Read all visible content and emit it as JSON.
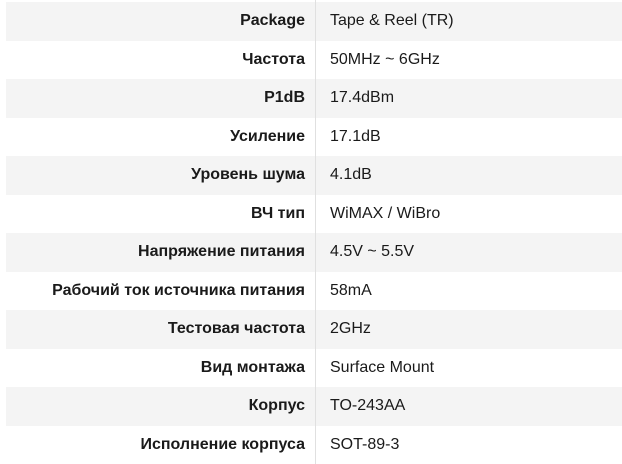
{
  "table": {
    "rows": [
      {
        "label": "Package",
        "value": "Tape & Reel (TR)"
      },
      {
        "label": "Частота",
        "value": "50MHz ~ 6GHz"
      },
      {
        "label": "P1dB",
        "value": "17.4dBm"
      },
      {
        "label": "Усиление",
        "value": "17.1dB"
      },
      {
        "label": "Уровень шума",
        "value": "4.1dB"
      },
      {
        "label": "ВЧ тип",
        "value": "WiMAX / WiBro"
      },
      {
        "label": "Напряжение питания",
        "value": "4.5V ~ 5.5V"
      },
      {
        "label": "Рабочий ток источника питания",
        "value": "58mA"
      },
      {
        "label": "Тестовая частота",
        "value": "2GHz"
      },
      {
        "label": "Вид монтажа",
        "value": "Surface Mount"
      },
      {
        "label": "Корпус",
        "value": "TO-243AA"
      },
      {
        "label": "Исполнение корпуса",
        "value": "SOT-89-3"
      }
    ],
    "colors": {
      "stripe": "#f4f4f4",
      "divider": "#e0e0e0",
      "text": "#1a1a1a"
    }
  }
}
